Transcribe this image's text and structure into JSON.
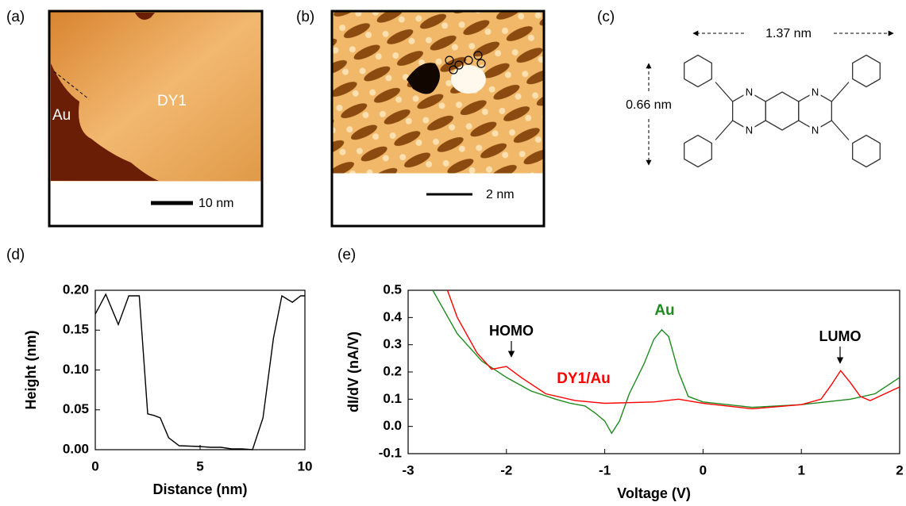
{
  "panels": {
    "a": {
      "label": "(a)",
      "texts": [
        "Au",
        "DY1"
      ],
      "scale_bar": "10 nm"
    },
    "b": {
      "label": "(b)",
      "scale_bar": "2 nm"
    },
    "c": {
      "label": "(c)",
      "width": "1.37 nm",
      "height": "0.66 nm",
      "atoms": [
        "N",
        "N",
        "N",
        "N"
      ]
    },
    "d": {
      "label": "(d)"
    },
    "e": {
      "label": "(e)"
    }
  },
  "chart_data": [
    {
      "type": "line",
      "x_label": "Distance (nm)",
      "y_label": "Height (nm)",
      "color": "#000000",
      "x": [
        0,
        0.5,
        1.1,
        1.6,
        2.1,
        2.5,
        2.8,
        3.1,
        3.5,
        4,
        5,
        5.5,
        6,
        6.5,
        7,
        7.5,
        8,
        8.5,
        8.9,
        9.4,
        9.8,
        10
      ],
      "values": [
        0.17,
        0.195,
        0.157,
        0.193,
        0.193,
        0.045,
        0.043,
        0.04,
        0.015,
        0.005,
        0.004,
        0.003,
        0.003,
        0.001,
        0.001,
        0,
        0.04,
        0.14,
        0.193,
        0.185,
        0.193,
        0.193
      ],
      "xlim": [
        0,
        10
      ],
      "xticks": [
        0,
        5,
        10
      ],
      "ylim": [
        0,
        0.2
      ],
      "yticks": [
        {
          "value": 0,
          "label": "0.00"
        },
        {
          "value": 0.05,
          "label": "0.05"
        },
        {
          "value": 0.1,
          "label": "0.10"
        },
        {
          "value": 0.15,
          "label": "0.15"
        },
        {
          "value": 0.2,
          "label": "0.20"
        }
      ]
    },
    {
      "type": "line",
      "x_label": "Voltage (V)",
      "y_label": "dI/dV (nA/V)",
      "series": [
        {
          "name": "Au",
          "color": "#1f8a1f",
          "x": [
            -2.75,
            -2.5,
            -2.25,
            -2,
            -1.75,
            -1.5,
            -1.35,
            -1.2,
            -1.1,
            -1,
            -0.93,
            -0.85,
            -0.75,
            -0.6,
            -0.5,
            -0.42,
            -0.35,
            -0.25,
            -0.15,
            0,
            0.5,
            1,
            1.5,
            1.75,
            2
          ],
          "values": [
            0.5,
            0.34,
            0.24,
            0.18,
            0.13,
            0.1,
            0.085,
            0.075,
            0.05,
            0.02,
            -0.025,
            0.02,
            0.12,
            0.23,
            0.32,
            0.355,
            0.33,
            0.2,
            0.11,
            0.09,
            0.07,
            0.08,
            0.1,
            0.12,
            0.18
          ]
        },
        {
          "name": "DY1/Au",
          "color": "#ff0000",
          "x": [
            -2.6,
            -2.5,
            -2.3,
            -2.15,
            -2,
            -1.85,
            -1.6,
            -1.3,
            -1,
            -0.5,
            -0.25,
            0,
            0.5,
            1,
            1.2,
            1.3,
            1.4,
            1.5,
            1.6,
            1.7,
            1.85,
            2
          ],
          "values": [
            0.5,
            0.4,
            0.27,
            0.21,
            0.22,
            0.18,
            0.12,
            0.095,
            0.085,
            0.09,
            0.1,
            0.085,
            0.065,
            0.08,
            0.1,
            0.15,
            0.205,
            0.16,
            0.11,
            0.095,
            0.12,
            0.145
          ]
        }
      ],
      "annotations": [
        "HOMO",
        "LUMO"
      ],
      "xlim": [
        -3,
        2
      ],
      "xticks": [
        -3,
        -2,
        -1,
        0,
        1,
        2
      ],
      "ylim": [
        -0.1,
        0.5
      ],
      "yticks": [
        -0.1,
        {
          "value": 0,
          "label": "0.0"
        },
        0.1,
        0.2,
        0.3,
        0.4,
        0.5
      ]
    }
  ]
}
